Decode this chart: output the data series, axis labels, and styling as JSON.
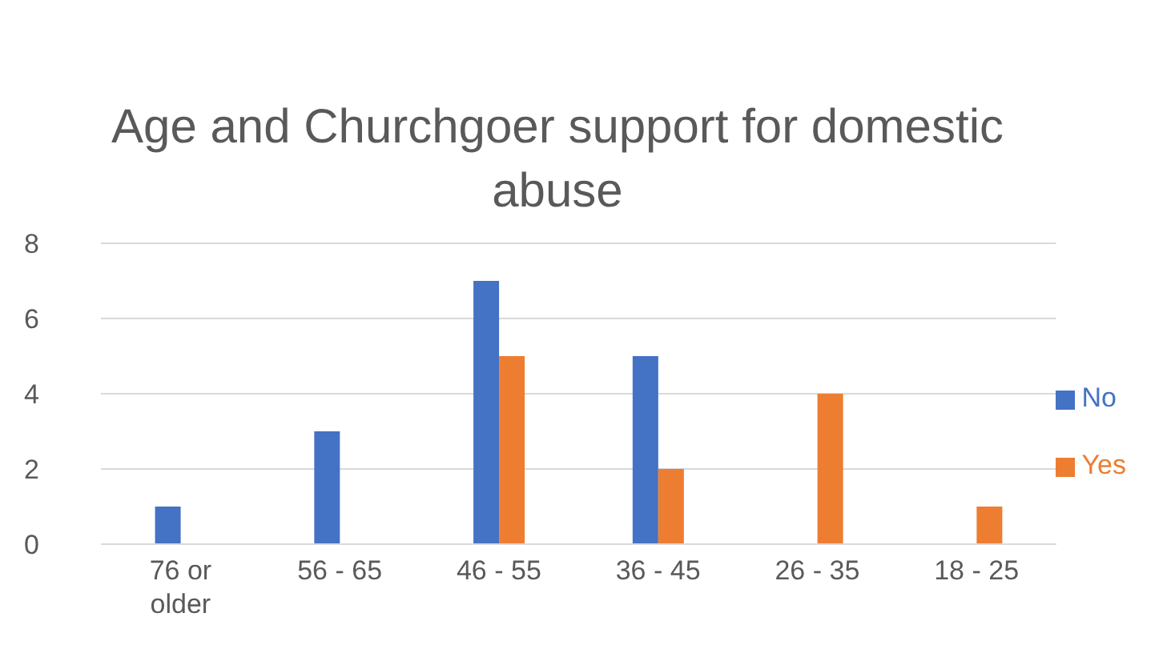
{
  "chart_data": {
    "type": "bar",
    "title": "Age and Churchgoer support for domestic abuse",
    "categories": [
      "76 or older",
      "56 - 65",
      "46 - 55",
      "36 - 45",
      "26 - 35",
      "18 - 25"
    ],
    "series": [
      {
        "name": "No",
        "color": "#4472c4",
        "values": [
          1,
          3,
          7,
          5,
          0,
          0
        ]
      },
      {
        "name": "Yes",
        "color": "#ed7d31",
        "values": [
          0,
          0,
          5,
          2,
          4,
          1
        ]
      }
    ],
    "ylim": [
      0,
      8
    ],
    "yticks": [
      0,
      2,
      4,
      6,
      8
    ],
    "grid": "y",
    "legend": "right"
  }
}
